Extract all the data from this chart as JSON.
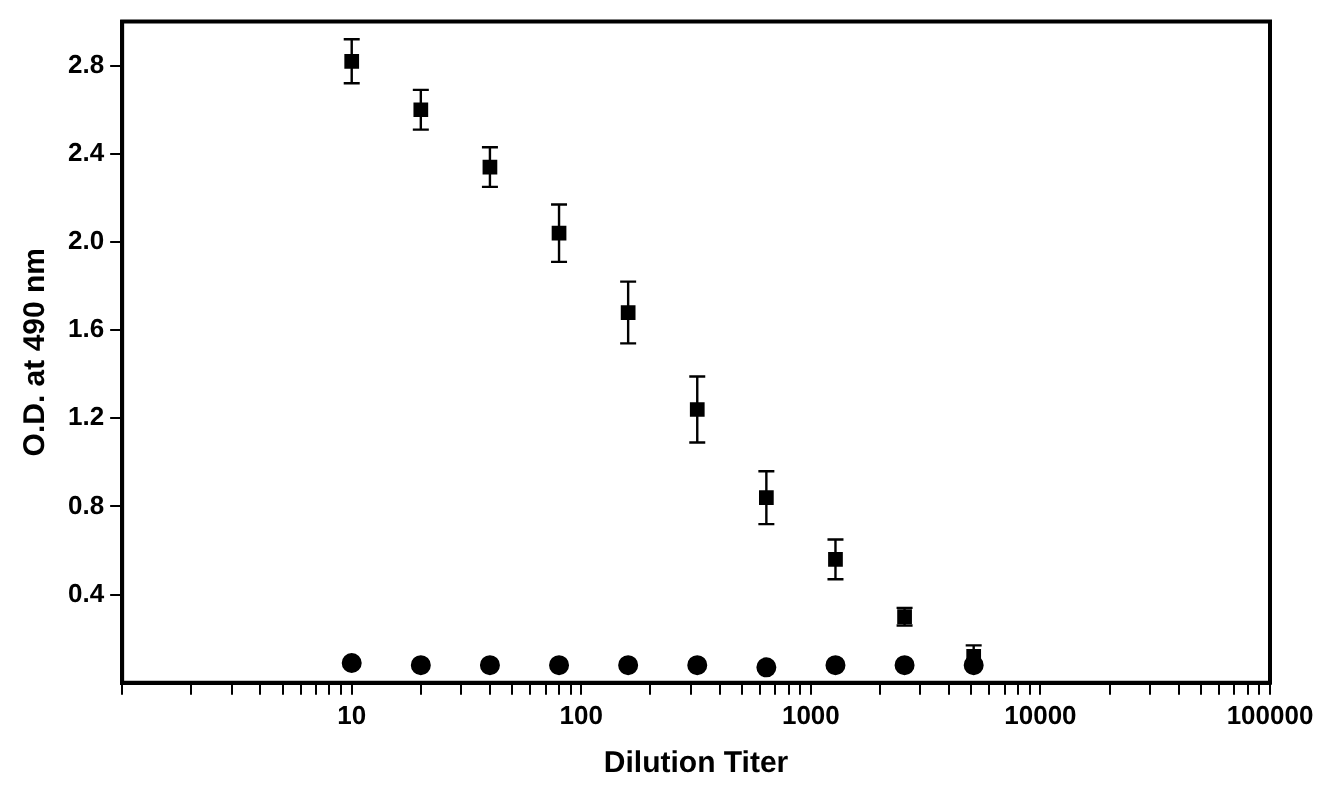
{
  "chart_data": {
    "type": "scatter",
    "xlabel": "Dilution Titer",
    "ylabel": "O.D. at 490 nm",
    "log": "x",
    "xlim": [
      1,
      100000
    ],
    "xticks": [
      {
        "value": 1,
        "label": null
      },
      10,
      100,
      1000,
      10000,
      100000
    ],
    "ylim": [
      0,
      3
    ],
    "yticks": [
      0.4,
      0.8,
      1.2,
      1.6,
      {
        "value": 2,
        "label": "2.0"
      },
      2.4,
      2.8
    ],
    "grid": false,
    "legend": false,
    "x": [
      10,
      20,
      40,
      80,
      160,
      320,
      640,
      1280,
      2560,
      5120
    ],
    "series": [
      {
        "color": "#000000",
        "marker": "square",
        "values": [
          2.82,
          2.6,
          2.34,
          2.04,
          1.68,
          1.24,
          0.84,
          0.56,
          0.3,
          0.12
        ],
        "errors": [
          0.1,
          0.09,
          0.09,
          0.13,
          0.14,
          0.15,
          0.12,
          0.09,
          0.04,
          0.05
        ]
      },
      {
        "color": "#000000",
        "marker": "circle",
        "values": [
          0.09,
          0.08,
          0.08,
          0.08,
          0.08,
          0.08,
          0.07,
          0.08,
          0.08,
          0.08
        ]
      }
    ]
  }
}
